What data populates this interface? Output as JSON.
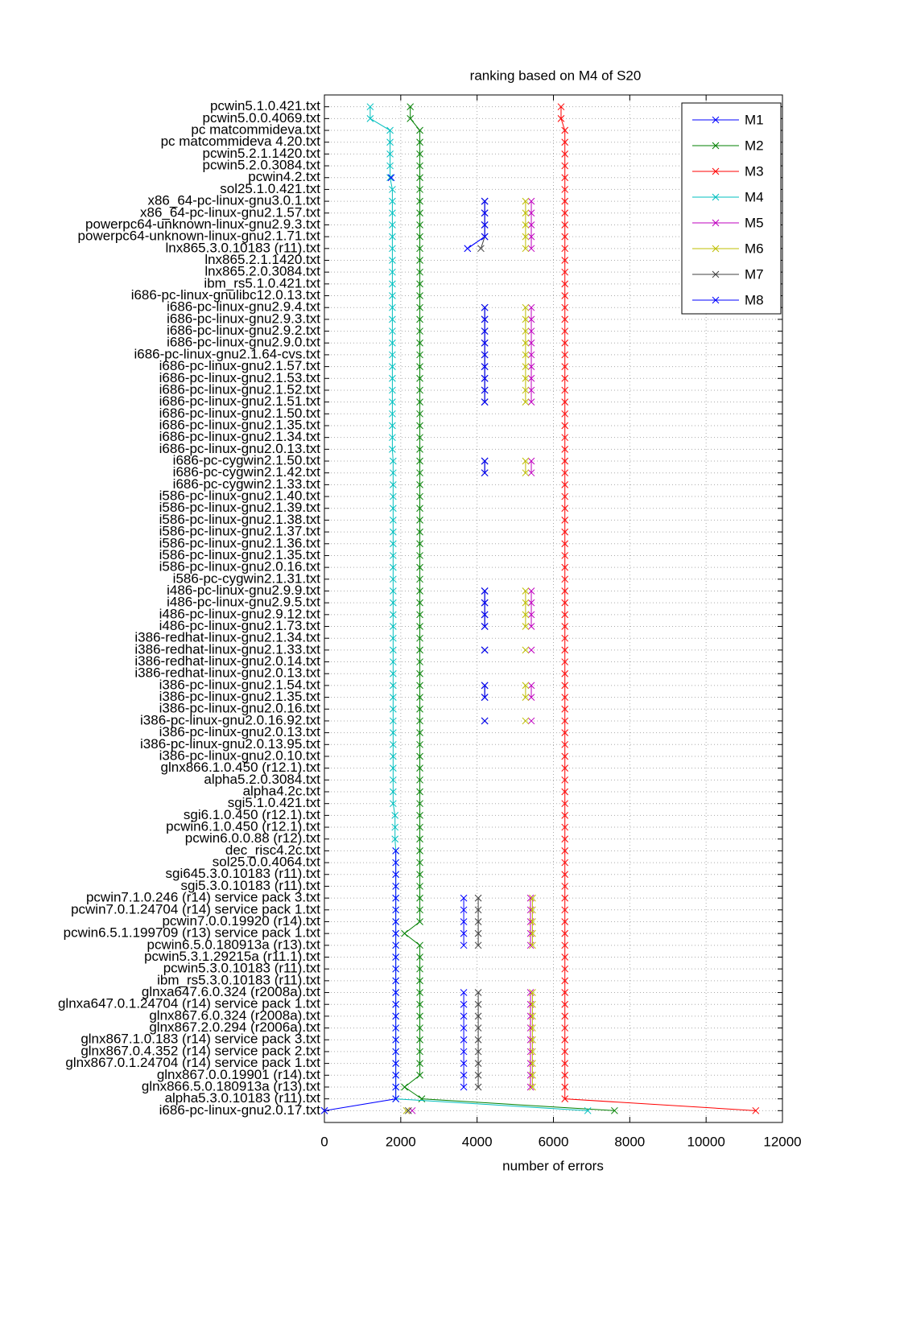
{
  "chart_data": {
    "type": "line",
    "title": "ranking based on M4 of S20",
    "xlabel": "number of errors",
    "categories": [
      "pcwin5.1.0.421.txt",
      "pcwin5.0.0.4069.txt",
      "pc matcommideva.txt",
      "pc matcommideva 4.20.txt",
      "pcwin5.2.1.1420.txt",
      "pcwin5.2.0.3084.txt",
      "pcwin4.2.txt",
      "sol25.1.0.421.txt",
      "x86_64-pc-linux-gnu3.0.1.txt",
      "x86_64-pc-linux-gnu2.1.57.txt",
      "powerpc64-unknown-linux-gnu2.9.3.txt",
      "powerpc64-unknown-linux-gnu2.1.71.txt",
      "lnx865.3.0.10183 (r11).txt",
      "lnx865.2.1.1420.txt",
      "lnx865.2.0.3084.txt",
      "ibm_rs5.1.0.421.txt",
      "i686-pc-linux-gnulibc12.0.13.txt",
      "i686-pc-linux-gnu2.9.4.txt",
      "i686-pc-linux-gnu2.9.3.txt",
      "i686-pc-linux-gnu2.9.2.txt",
      "i686-pc-linux-gnu2.9.0.txt",
      "i686-pc-linux-gnu2.1.64-cvs.txt",
      "i686-pc-linux-gnu2.1.57.txt",
      "i686-pc-linux-gnu2.1.53.txt",
      "i686-pc-linux-gnu2.1.52.txt",
      "i686-pc-linux-gnu2.1.51.txt",
      "i686-pc-linux-gnu2.1.50.txt",
      "i686-pc-linux-gnu2.1.35.txt",
      "i686-pc-linux-gnu2.1.34.txt",
      "i686-pc-linux-gnu2.0.13.txt",
      "i686-pc-cygwin2.1.50.txt",
      "i686-pc-cygwin2.1.42.txt",
      "i686-pc-cygwin2.1.33.txt",
      "i586-pc-linux-gnu2.1.40.txt",
      "i586-pc-linux-gnu2.1.39.txt",
      "i586-pc-linux-gnu2.1.38.txt",
      "i586-pc-linux-gnu2.1.37.txt",
      "i586-pc-linux-gnu2.1.36.txt",
      "i586-pc-linux-gnu2.1.35.txt",
      "i586-pc-linux-gnu2.0.16.txt",
      "i586-pc-cygwin2.1.31.txt",
      "i486-pc-linux-gnu2.9.9.txt",
      "i486-pc-linux-gnu2.9.5.txt",
      "i486-pc-linux-gnu2.9.12.txt",
      "i486-pc-linux-gnu2.1.73.txt",
      "i386-redhat-linux-gnu2.1.34.txt",
      "i386-redhat-linux-gnu2.1.33.txt",
      "i386-redhat-linux-gnu2.0.14.txt",
      "i386-redhat-linux-gnu2.0.13.txt",
      "i386-pc-linux-gnu2.1.54.txt",
      "i386-pc-linux-gnu2.1.35.txt",
      "i386-pc-linux-gnu2.0.16.txt",
      "i386-pc-linux-gnu2.0.16.92.txt",
      "i386-pc-linux-gnu2.0.13.txt",
      "i386-pc-linux-gnu2.0.13.95.txt",
      "i386-pc-linux-gnu2.0.10.txt",
      "glnx866.1.0.450 (r12.1).txt",
      "alpha5.2.0.3084.txt",
      "alpha4.2c.txt",
      "sgi5.1.0.421.txt",
      "sgi6.1.0.450 (r12.1).txt",
      "pcwin6.1.0.450 (r12.1).txt",
      "pcwin6.0.0.88 (r12).txt",
      "dec_risc4.2c.txt",
      "sol25.0.0.4064.txt",
      "sgi645.3.0.10183 (r11).txt",
      "sgi5.3.0.10183 (r11).txt",
      "pcwin7.1.0.246 (r14) service pack 3.txt",
      "pcwin7.0.1.24704 (r14) service pack 1.txt",
      "pcwin7.0.0.19920 (r14).txt",
      "pcwin6.5.1.199709 (r13) service pack 1.txt",
      "pcwin6.5.0.180913a (r13).txt",
      "pcwin5.3.1.29215a (r11.1).txt",
      "pcwin5.3.0.10183 (r11).txt",
      "ibm_rs5.3.0.10183 (r11).txt",
      "glnxa647.6.0.324 (r2008a).txt",
      "glnxa647.0.1.24704 (r14) service pack 1.txt",
      "glnx867.6.0.324 (r2008a).txt",
      "glnx867.2.0.294 (r2006a).txt",
      "glnx867.1.0.183 (r14) service pack 3.txt",
      "glnx867.0.4.352 (r14) service pack 2.txt",
      "glnx867.0.1.24704 (r14) service pack 1.txt",
      "glnx867.0.0.19901 (r14).txt",
      "glnx866.5.0.180913a (r13).txt",
      "alpha5.3.0.10183 (r11).txt",
      "i686-pc-linux-gnu2.0.17.txt"
    ],
    "series": [
      {
        "name": "M1",
        "color": "#0000ff",
        "values": [
          null,
          null,
          null,
          null,
          null,
          null,
          null,
          null,
          4200,
          4200,
          4200,
          4200,
          3750,
          null,
          null,
          null,
          null,
          4200,
          4200,
          4200,
          4200,
          4200,
          4200,
          4200,
          4200,
          4200,
          null,
          null,
          null,
          null,
          4200,
          4200,
          null,
          null,
          null,
          null,
          null,
          null,
          null,
          null,
          null,
          4200,
          4200,
          4200,
          4200,
          null,
          4200,
          null,
          null,
          4200,
          4200,
          null,
          4200,
          null,
          null,
          null,
          null,
          null,
          null,
          null,
          null,
          null,
          null,
          null,
          null,
          null,
          null,
          3650,
          3650,
          3650,
          3650,
          3650,
          null,
          null,
          null,
          3650,
          3650,
          3650,
          3650,
          3650,
          3650,
          3650,
          3650,
          3650,
          null,
          0
        ]
      },
      {
        "name": "M2",
        "color": "#008000",
        "values": [
          2250,
          2250,
          2500,
          2500,
          2500,
          2500,
          2500,
          2500,
          2500,
          2500,
          2500,
          2500,
          2500,
          2500,
          2500,
          2500,
          2500,
          2500,
          2500,
          2500,
          2500,
          2500,
          2500,
          2500,
          2500,
          2500,
          2500,
          2500,
          2500,
          2500,
          2500,
          2500,
          2500,
          2500,
          2500,
          2500,
          2500,
          2500,
          2500,
          2500,
          2500,
          2500,
          2500,
          2500,
          2500,
          2500,
          2500,
          2500,
          2500,
          2500,
          2500,
          2500,
          2500,
          2500,
          2500,
          2500,
          2500,
          2500,
          2500,
          2500,
          2500,
          2500,
          2500,
          2500,
          2500,
          2500,
          2500,
          2500,
          2500,
          2500,
          2100,
          2500,
          2500,
          2500,
          2500,
          2500,
          2500,
          2500,
          2500,
          2500,
          2500,
          2500,
          2500,
          2100,
          2550,
          7600
        ]
      },
      {
        "name": "M3",
        "color": "#ff0000",
        "values": [
          6200,
          6200,
          6300,
          6300,
          6300,
          6300,
          6300,
          6300,
          6300,
          6300,
          6300,
          6300,
          6300,
          6300,
          6300,
          6300,
          6300,
          6300,
          6300,
          6300,
          6300,
          6300,
          6300,
          6300,
          6300,
          6300,
          6300,
          6300,
          6300,
          6300,
          6300,
          6300,
          6300,
          6300,
          6300,
          6300,
          6300,
          6300,
          6300,
          6300,
          6300,
          6300,
          6300,
          6300,
          6300,
          6300,
          6300,
          6300,
          6300,
          6300,
          6300,
          6300,
          6300,
          6300,
          6300,
          6300,
          6300,
          6300,
          6300,
          6300,
          6300,
          6300,
          6300,
          6300,
          6300,
          6300,
          6300,
          6300,
          6300,
          6300,
          6300,
          6300,
          6300,
          6300,
          6300,
          6300,
          6300,
          6300,
          6300,
          6300,
          6300,
          6300,
          6300,
          6300,
          6300,
          11300
        ]
      },
      {
        "name": "M4",
        "color": "#00bfbf",
        "values": [
          1200,
          1200,
          1720,
          1720,
          1720,
          1720,
          1720,
          1780,
          1780,
          1780,
          1780,
          1780,
          1780,
          1780,
          1780,
          1780,
          1780,
          1780,
          1780,
          1780,
          1780,
          1780,
          1780,
          1780,
          1780,
          1780,
          1780,
          1780,
          1780,
          1780,
          1800,
          1800,
          1800,
          1800,
          1800,
          1800,
          1800,
          1800,
          1800,
          1800,
          1800,
          1800,
          1800,
          1800,
          1800,
          1800,
          1800,
          1800,
          1800,
          1800,
          1800,
          1800,
          1800,
          1800,
          1800,
          1800,
          1800,
          1800,
          1800,
          1800,
          1850,
          1850,
          1850,
          1870,
          1870,
          1870,
          1870,
          1870,
          1870,
          1870,
          1870,
          1870,
          1870,
          1870,
          1870,
          1870,
          1870,
          1870,
          1870,
          1870,
          1870,
          1870,
          1870,
          1870,
          1870,
          6900
        ]
      },
      {
        "name": "M5",
        "color": "#bf00bf",
        "values": [
          null,
          null,
          null,
          null,
          null,
          null,
          null,
          null,
          5420,
          5420,
          5420,
          5420,
          5420,
          null,
          null,
          null,
          null,
          5420,
          5420,
          5420,
          5420,
          5420,
          5420,
          5420,
          5420,
          5420,
          null,
          null,
          null,
          null,
          5420,
          5420,
          null,
          null,
          null,
          null,
          null,
          null,
          null,
          null,
          null,
          5420,
          5420,
          5420,
          5420,
          null,
          5420,
          null,
          null,
          5420,
          5420,
          null,
          5420,
          null,
          null,
          null,
          null,
          null,
          null,
          null,
          null,
          null,
          null,
          null,
          null,
          null,
          null,
          5400,
          5400,
          5400,
          5400,
          5400,
          null,
          null,
          null,
          5400,
          5400,
          5400,
          5400,
          5400,
          5400,
          5400,
          5400,
          5400,
          null,
          2300
        ]
      },
      {
        "name": "M6",
        "color": "#bfbf00",
        "values": [
          null,
          null,
          null,
          null,
          null,
          null,
          null,
          null,
          5270,
          5270,
          5270,
          5270,
          5270,
          null,
          null,
          null,
          null,
          5270,
          5270,
          5270,
          5270,
          5270,
          5270,
          5270,
          5270,
          5270,
          null,
          null,
          null,
          null,
          5270,
          5270,
          null,
          null,
          null,
          null,
          null,
          null,
          null,
          null,
          null,
          5270,
          5270,
          5270,
          5270,
          null,
          5270,
          null,
          null,
          5270,
          5270,
          null,
          5270,
          null,
          null,
          null,
          null,
          null,
          null,
          null,
          null,
          null,
          null,
          null,
          null,
          null,
          null,
          5450,
          5450,
          5450,
          5450,
          5450,
          null,
          null,
          null,
          5450,
          5450,
          5450,
          5450,
          5450,
          5450,
          5450,
          5450,
          5450,
          null,
          2150
        ]
      },
      {
        "name": "M7",
        "color": "#404040",
        "values": [
          null,
          null,
          null,
          null,
          null,
          null,
          null,
          null,
          4200,
          4200,
          4200,
          4200,
          4100,
          null,
          null,
          null,
          null,
          4200,
          4200,
          4200,
          4200,
          4200,
          4200,
          4200,
          4200,
          4200,
          null,
          null,
          null,
          null,
          4200,
          4200,
          null,
          null,
          null,
          null,
          null,
          null,
          null,
          null,
          null,
          4200,
          4200,
          4200,
          4200,
          null,
          4200,
          null,
          null,
          4200,
          4200,
          null,
          4200,
          null,
          null,
          null,
          null,
          null,
          null,
          null,
          null,
          null,
          null,
          null,
          null,
          null,
          null,
          4030,
          4030,
          4030,
          4030,
          4030,
          null,
          null,
          null,
          4030,
          4030,
          4030,
          4030,
          4030,
          4030,
          4030,
          4030,
          4030,
          null,
          2200
        ]
      },
      {
        "name": "M8",
        "color": "#0000ff",
        "values": [
          null,
          null,
          null,
          null,
          null,
          null,
          1750,
          null,
          4200,
          4200,
          4200,
          4200,
          3750,
          null,
          null,
          null,
          null,
          4200,
          4200,
          4200,
          4200,
          4200,
          4200,
          4200,
          4200,
          4200,
          null,
          null,
          null,
          null,
          4200,
          4200,
          null,
          null,
          null,
          null,
          null,
          null,
          null,
          null,
          null,
          4200,
          4200,
          4200,
          4200,
          null,
          4200,
          null,
          null,
          4200,
          4200,
          null,
          4200,
          null,
          null,
          null,
          null,
          null,
          null,
          null,
          null,
          null,
          null,
          1870,
          1870,
          1870,
          1870,
          1870,
          1870,
          1870,
          1870,
          1870,
          1870,
          1870,
          1870,
          1870,
          1870,
          1870,
          1870,
          1870,
          1870,
          1870,
          1870,
          1870,
          1870,
          0
        ]
      }
    ],
    "xlim": [
      0,
      12000
    ],
    "xticks": [
      0,
      2000,
      4000,
      6000,
      8000,
      10000,
      12000
    ],
    "grid": true,
    "legend": "upper right"
  }
}
